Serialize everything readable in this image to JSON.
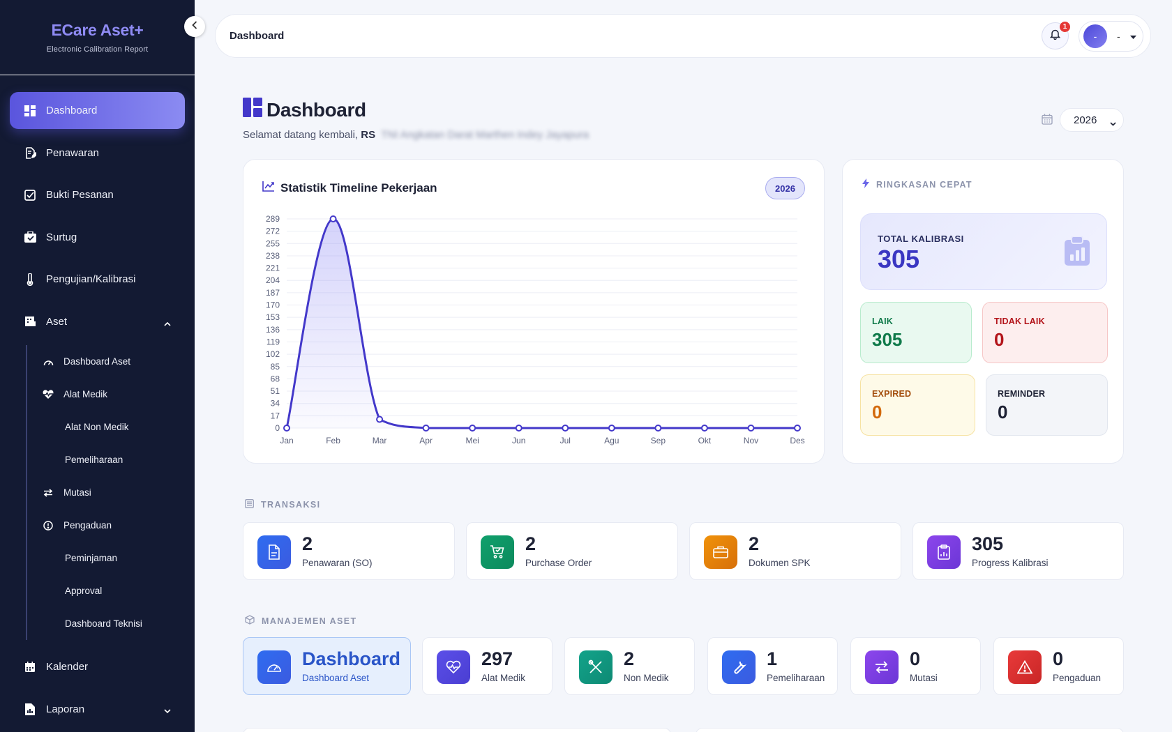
{
  "app": {
    "title": "ECare Aset+",
    "subtitle": "Electronic Calibration Report"
  },
  "sidebar": {
    "items": [
      {
        "label": "Dashboard",
        "icon": "dashboard-icon"
      },
      {
        "label": "Penawaran",
        "icon": "document-edit-icon"
      },
      {
        "label": "Bukti Pesanan",
        "icon": "checkbox-icon"
      },
      {
        "label": "Surtug",
        "icon": "briefcase-check-icon"
      },
      {
        "label": "Pengujian/Kalibrasi",
        "icon": "thermometer-icon"
      },
      {
        "label": "Aset",
        "icon": "building-icon"
      }
    ],
    "aset_sub": [
      {
        "label": "Dashboard Aset",
        "icon": "gauge-icon"
      },
      {
        "label": "Alat Medik",
        "icon": "heart-pulse-icon"
      },
      {
        "label": "Alat Non Medik"
      },
      {
        "label": "Pemeliharaan"
      },
      {
        "label": "Mutasi",
        "icon": "exchange-icon"
      },
      {
        "label": "Pengaduan",
        "icon": "alert-circle-icon"
      },
      {
        "label": "Peminjaman"
      },
      {
        "label": "Approval"
      },
      {
        "label": "Dashboard Teknisi"
      }
    ],
    "bottom_items": [
      {
        "label": "Kalender",
        "icon": "calendar-icon"
      },
      {
        "label": "Laporan",
        "icon": "file-report-icon"
      }
    ]
  },
  "topbar": {
    "title": "Dashboard",
    "notification_count": "1",
    "avatar_initial": "-",
    "user_name": "-"
  },
  "header": {
    "title": "Dashboard",
    "welcome_prefix": "Selamat datang kembali,",
    "org_prefix": "RS",
    "org_name": "TNI Angkatan Darat Marthen Indey Jayapura",
    "year": "2026"
  },
  "chart_card": {
    "title": "Statistik Timeline Pekerjaan",
    "badge": "2026"
  },
  "chart_data": {
    "type": "area",
    "categories": [
      "Jan",
      "Feb",
      "Mar",
      "Apr",
      "Mei",
      "Jun",
      "Jul",
      "Agu",
      "Sep",
      "Okt",
      "Nov",
      "Des"
    ],
    "values": [
      0,
      289,
      12,
      0,
      0,
      0,
      0,
      0,
      0,
      0,
      0,
      0
    ],
    "yticks": [
      0,
      17,
      34,
      51,
      68,
      85,
      102,
      119,
      136,
      153,
      170,
      187,
      204,
      221,
      238,
      255,
      272,
      289
    ],
    "ylim": [
      0,
      289
    ],
    "grid": true,
    "colors": {
      "line": "#4338ca",
      "fill": "#8f8bf4"
    }
  },
  "summary": {
    "title": "RINGKASAN CEPAT",
    "total_label": "TOTAL KALIBRASI",
    "total_value": "305",
    "laik_label": "LAIK",
    "laik_value": "305",
    "tidak_laik_label": "TIDAK LAIK",
    "tidak_laik_value": "0",
    "expired_label": "EXPIRED",
    "expired_value": "0",
    "reminder_label": "REMINDER",
    "reminder_value": "0"
  },
  "transaksi": {
    "title": "TRANSAKSI",
    "items": [
      {
        "value": "2",
        "label": "Penawaran (SO)",
        "icon": "document-icon"
      },
      {
        "value": "2",
        "label": "Purchase Order",
        "icon": "cart-icon"
      },
      {
        "value": "2",
        "label": "Dokumen SPK",
        "icon": "briefcase-icon"
      },
      {
        "value": "305",
        "label": "Progress Kalibrasi",
        "icon": "clipboard-chart-icon"
      }
    ]
  },
  "manajemen": {
    "title": "MANAJEMEN ASET",
    "items": [
      {
        "value": "Dashboard",
        "label": "Dashboard Aset",
        "icon": "gauge-icon"
      },
      {
        "value": "297",
        "label": "Alat Medik",
        "icon": "heart-pulse-icon"
      },
      {
        "value": "2",
        "label": "Non Medik",
        "icon": "tools-icon"
      },
      {
        "value": "1",
        "label": "Pemeliharaan",
        "icon": "wrench-icon"
      },
      {
        "value": "0",
        "label": "Mutasi",
        "icon": "exchange-icon"
      },
      {
        "value": "0",
        "label": "Pengaduan",
        "icon": "warning-icon"
      }
    ]
  }
}
